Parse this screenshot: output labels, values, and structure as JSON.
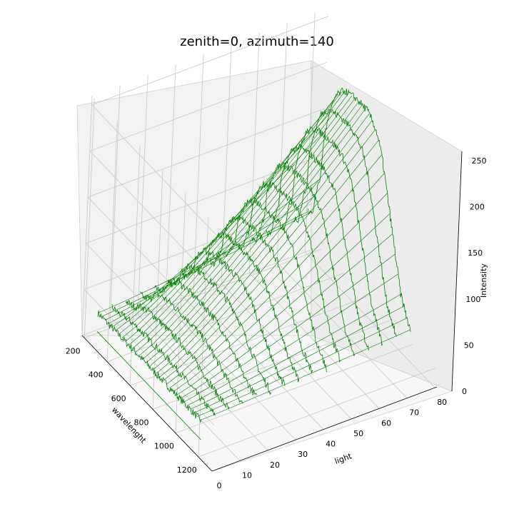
{
  "chart_data": {
    "type": "3d-wireframe",
    "title": "zenith=0, azimuth=140",
    "xlabel": "wavelenght",
    "ylabel": "light",
    "zlabel": "Intensity",
    "x_ticks": [
      200,
      400,
      600,
      800,
      1000,
      1200
    ],
    "y_ticks": [
      0,
      10,
      20,
      30,
      40,
      50,
      60,
      70,
      80
    ],
    "z_ticks": [
      0,
      50,
      100,
      150,
      200,
      250
    ],
    "xlim": [
      180,
      1320
    ],
    "ylim": [
      0,
      85
    ],
    "zlim": [
      0,
      260
    ],
    "grid": true,
    "line_color": "#008000",
    "pane_left_color": "#f2f2f2",
    "pane_right_color": "#ececec",
    "pane_floor_color": "#f7f7f7",
    "series": {
      "light_levels": [
        5,
        10,
        15,
        20,
        25,
        30,
        35,
        40,
        45,
        50,
        55,
        60,
        65,
        70,
        75,
        80
      ],
      "wavelength_points": [
        190,
        230,
        260,
        285,
        300,
        330,
        380,
        450,
        550,
        650,
        700,
        750,
        800,
        900,
        1000,
        1100
      ],
      "profile_at_max_light": [
        45,
        50,
        80,
        95,
        140,
        165,
        195,
        210,
        215,
        215,
        210,
        200,
        180,
        120,
        60,
        30
      ],
      "profile_at_min_light": [
        20,
        20,
        20,
        20,
        20,
        20,
        20,
        20,
        20,
        20,
        20,
        20,
        20,
        20,
        20,
        20
      ]
    }
  }
}
